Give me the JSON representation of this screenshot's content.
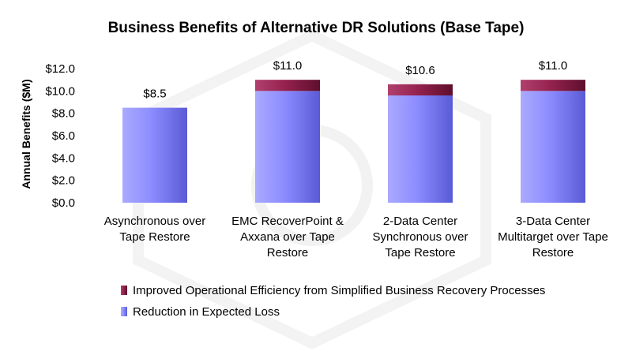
{
  "chart_data": {
    "type": "bar",
    "stacked": true,
    "title": "Business Benefits of Alternative DR Solutions (Base Tape)",
    "ylabel": "Annual Benefits ($M)",
    "xlabel": "",
    "ylim": [
      0,
      12
    ],
    "yticks": [
      "$0.0",
      "$2.0",
      "$4.0",
      "$6.0",
      "$8.0",
      "$10.0",
      "$12.0"
    ],
    "categories": [
      [
        "Asynchronous over",
        "Tape Restore"
      ],
      [
        "EMC RecoverPoint &",
        "Axxana over Tape",
        "Restore"
      ],
      [
        "2-Data Center",
        "Synchronous over",
        "Tape Restore"
      ],
      [
        "3-Data Center",
        "Multitarget over Tape",
        "Restore"
      ]
    ],
    "series": [
      {
        "name": "Reduction in Expected Loss",
        "color": "#8080ff",
        "values": [
          8.5,
          10.0,
          9.6,
          10.0
        ]
      },
      {
        "name": "Improved Operational Efficiency from Simplified Business Recovery Processes",
        "color": "#8b1a48",
        "values": [
          0.0,
          1.0,
          1.0,
          1.0
        ]
      }
    ],
    "totals_labels": [
      "$8.5",
      "$11.0",
      "$10.6",
      "$11.0"
    ],
    "grid": false,
    "legend_position": "bottom-center"
  }
}
